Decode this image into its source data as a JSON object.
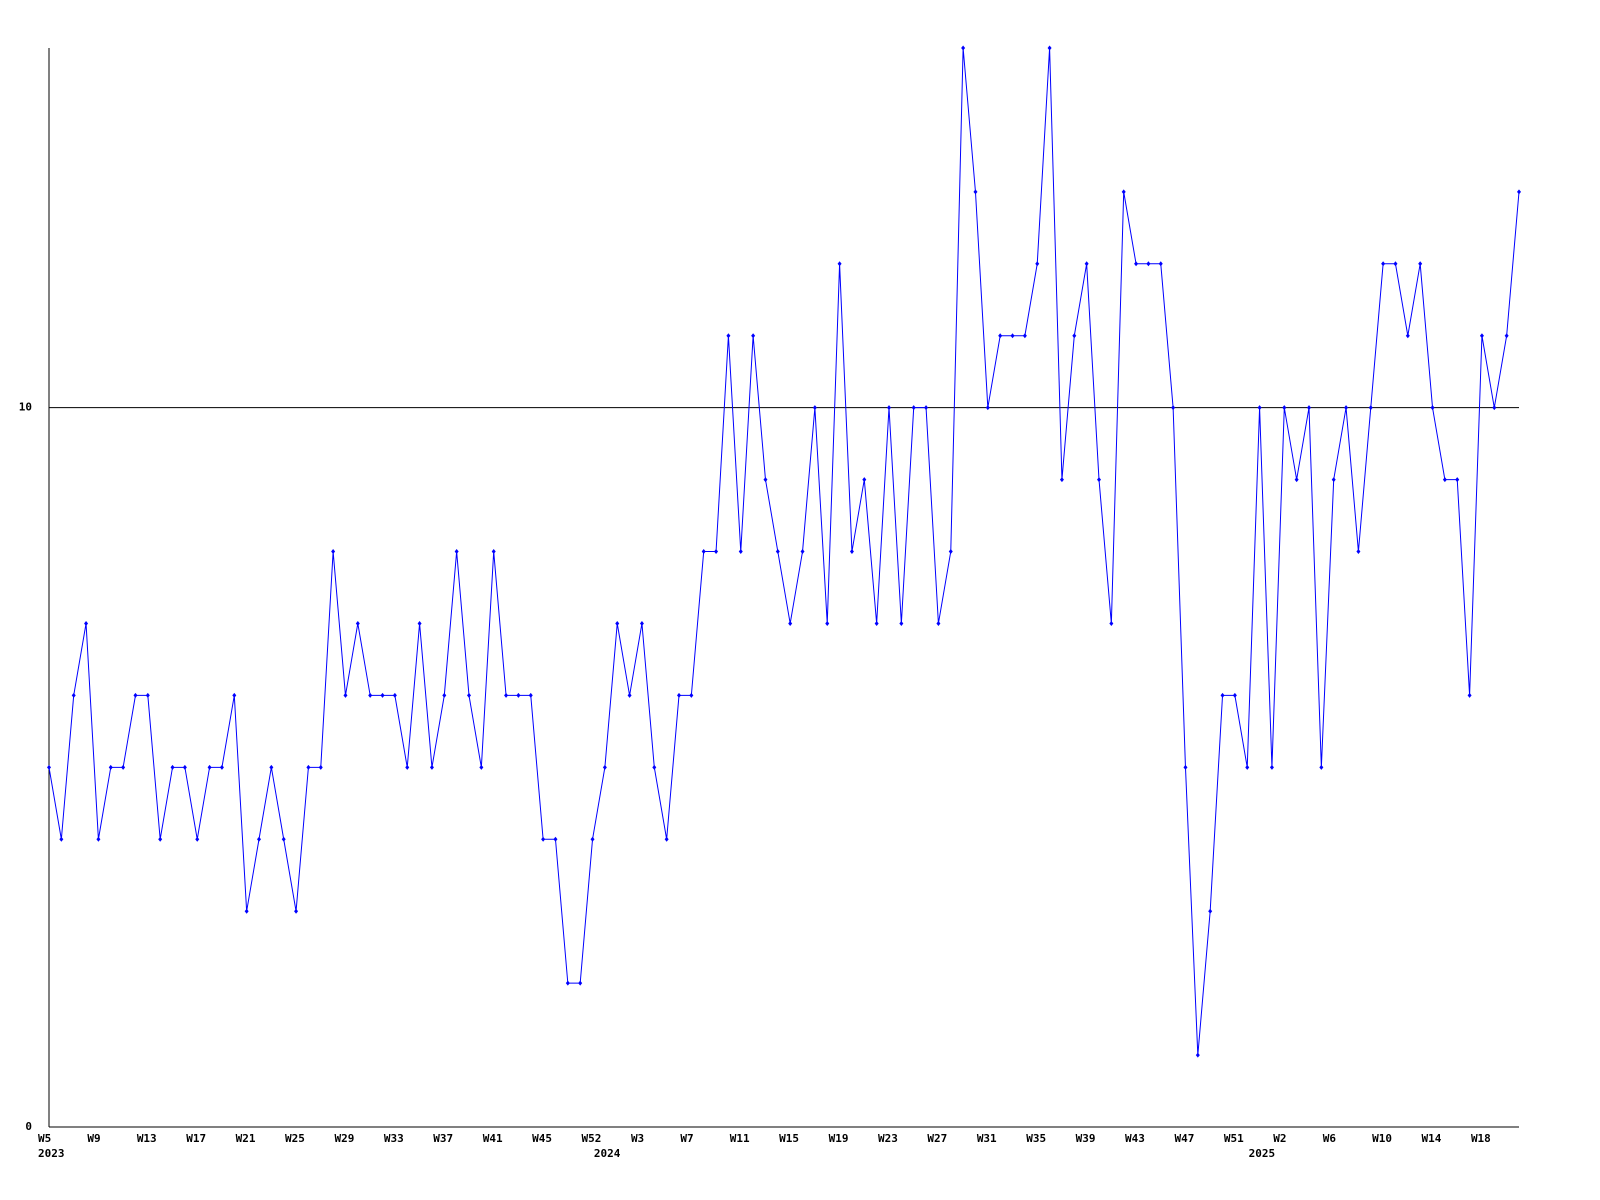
{
  "chart_data": {
    "type": "line",
    "categories": [
      "W5",
      null,
      null,
      null,
      "W9",
      null,
      null,
      null,
      "W13",
      null,
      null,
      null,
      "W17",
      null,
      null,
      null,
      "W21",
      null,
      null,
      null,
      "W25",
      null,
      null,
      null,
      "W29",
      null,
      null,
      null,
      "W33",
      null,
      null,
      null,
      "W37",
      null,
      null,
      null,
      "W41",
      null,
      null,
      null,
      "W45",
      null,
      null,
      null,
      "W52",
      null,
      null,
      null,
      "W3",
      null,
      null,
      null,
      "W7",
      null,
      null,
      null,
      "W11",
      null,
      null,
      null,
      "W15",
      null,
      null,
      null,
      "W19",
      null,
      null,
      null,
      "W23",
      null,
      null,
      null,
      "W27",
      null,
      null,
      null,
      "W31",
      null,
      null,
      null,
      "W35",
      null,
      null,
      null,
      "W39",
      null,
      null,
      null,
      "W43",
      null,
      null,
      null,
      "W47",
      null,
      null,
      null,
      "W51",
      null,
      null,
      null,
      "W2",
      null,
      null,
      null,
      "W6",
      null,
      null,
      null,
      "W10",
      null,
      null,
      null,
      "W14",
      null,
      null,
      null,
      "W18",
      null,
      null,
      null
    ],
    "category_years": [
      "2023",
      null,
      null,
      null,
      null,
      null,
      null,
      null,
      null,
      null,
      null,
      null,
      null,
      null,
      null,
      null,
      null,
      null,
      null,
      null,
      null,
      null,
      null,
      null,
      null,
      null,
      null,
      null,
      null,
      null,
      null,
      null,
      null,
      null,
      null,
      null,
      null,
      null,
      null,
      null,
      null,
      null,
      null,
      null,
      null,
      "2024",
      null,
      null,
      null,
      null,
      null,
      null,
      null,
      null,
      null,
      null,
      null,
      null,
      null,
      null,
      null,
      null,
      null,
      null,
      null,
      null,
      null,
      null,
      null,
      null,
      null,
      null,
      null,
      null,
      null,
      null,
      null,
      null,
      null,
      null,
      null,
      null,
      null,
      null,
      null,
      null,
      null,
      null,
      null,
      null,
      null,
      null,
      null,
      null,
      null,
      null,
      null,
      null,
      "2025",
      null,
      null,
      null,
      null,
      null,
      null,
      null,
      null,
      null,
      null,
      null,
      null,
      null,
      null,
      null,
      null,
      null,
      null,
      null,
      null,
      null
    ],
    "series": [
      {
        "color": "#0000ff",
        "values": [
          5,
          4,
          6,
          7,
          4,
          5,
          5,
          6,
          6,
          4,
          5,
          5,
          4,
          5,
          5,
          6,
          3,
          4,
          5,
          4,
          3,
          5,
          5,
          8,
          6,
          7,
          6,
          6,
          6,
          5,
          7,
          5,
          6,
          8,
          6,
          5,
          8,
          6,
          6,
          6,
          4,
          4,
          2,
          2,
          4,
          5,
          7,
          6,
          7,
          5,
          4,
          6,
          6,
          8,
          8,
          11,
          8,
          11,
          9,
          8,
          7,
          8,
          10,
          7,
          12,
          8,
          9,
          7,
          10,
          7,
          10,
          10,
          7,
          8,
          15,
          13,
          10,
          11,
          11,
          11,
          12,
          15,
          9,
          11,
          12,
          9,
          7,
          13,
          12,
          12,
          12,
          10,
          5,
          1,
          3,
          6,
          6,
          5,
          10,
          5,
          10,
          9,
          10,
          5,
          9,
          10,
          8,
          10,
          12,
          12,
          11,
          12,
          10,
          9,
          9,
          6,
          11,
          10,
          11,
          13
        ]
      }
    ],
    "ylim": [
      0,
      15
    ],
    "yticks": [
      0,
      10
    ],
    "grid": true
  }
}
